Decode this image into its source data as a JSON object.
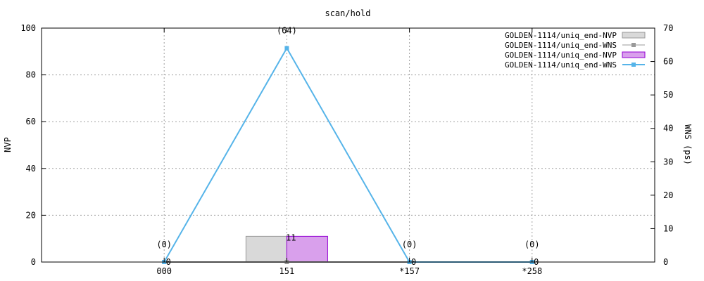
{
  "chart_data": {
    "type": "bar",
    "title": "scan/hold",
    "ylabel": "NVP",
    "y2label": "WNS (ps)",
    "categories": [
      "000",
      "151",
      "*157",
      "*258"
    ],
    "ylim": [
      0,
      100
    ],
    "y2lim": [
      0,
      70
    ],
    "yticks": [
      0,
      20,
      40,
      60,
      80,
      100
    ],
    "y2ticks": [
      0,
      10,
      20,
      30,
      40,
      50,
      60,
      70
    ],
    "grid": true,
    "legend_position": "top-right",
    "series": [
      {
        "name": "GOLDEN-1114/uniq_end-NVP",
        "kind": "bar",
        "axis": "y",
        "color": "#d9d9d9",
        "stroke": "#999999",
        "values": [
          0,
          11,
          0,
          0
        ],
        "labels": [
          "",
          "",
          "",
          ""
        ]
      },
      {
        "name": "GOLDEN-1114/uniq_end-WNS",
        "kind": "line",
        "axis": "y2",
        "color": "#999999",
        "values": [
          0,
          0,
          0,
          0
        ],
        "labels": [
          "",
          "",
          "",
          ""
        ]
      },
      {
        "name": "GOLDEN-1114/uniq_end-NVP",
        "kind": "bar",
        "axis": "y",
        "color": "#d9a0ec",
        "stroke": "#9400d3",
        "values": [
          0,
          11,
          0,
          0
        ],
        "labels": [
          "0",
          "11",
          "0",
          "0"
        ]
      },
      {
        "name": "GOLDEN-1114/uniq_end-WNS",
        "kind": "line",
        "axis": "y2",
        "color": "#56b4e9",
        "values": [
          0,
          64,
          0,
          0
        ],
        "labels": [
          "(0)",
          "(64)",
          "(0)",
          "(0)"
        ]
      }
    ]
  }
}
